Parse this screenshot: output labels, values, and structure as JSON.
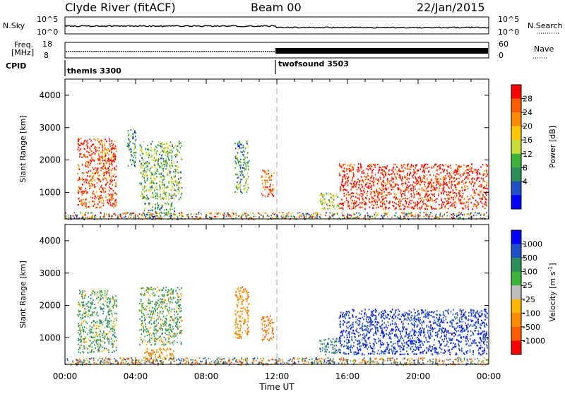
{
  "header": {
    "radar": "Clyde River (fitACF)",
    "beam": "Beam 00",
    "date": "22/Jan/2015"
  },
  "strip_labels": {
    "nsky": "N.Sky",
    "nsearch": "N.Search",
    "freq_line1": "Freq.",
    "freq_line2": "[MHz]",
    "nave": "Nave",
    "cpid": "CPID",
    "nsky_ticks": [
      "10^5",
      "10^0"
    ],
    "nsearch_ticks": [
      "10^5",
      "10^0"
    ],
    "freq_ticks": [
      "18",
      "8"
    ],
    "nave_ticks": [
      "60",
      "0"
    ],
    "cpid_modes": [
      {
        "label": "themis 3300",
        "start_hour": 0
      },
      {
        "label": "twofsound 3503",
        "start_hour": 12
      }
    ]
  },
  "axes": {
    "xlabel": "Time UT",
    "ylabel": "Slant Range [km]",
    "x_tick_labels": [
      "00:00",
      "04:00",
      "08:00",
      "12:00",
      "16:00",
      "20:00",
      "00:00"
    ],
    "y_tick_labels": [
      "1000",
      "2000",
      "3000",
      "4000"
    ]
  },
  "colorbars": {
    "power": {
      "label": "Power [dB]",
      "ticks": [
        "4",
        "8",
        "12",
        "16",
        "20",
        "24",
        "28"
      ],
      "colors": [
        "#0000ff",
        "#1e50c8",
        "#2d8c5a",
        "#3cb43c",
        "#c8dc3c",
        "#ffc800",
        "#ff8c00",
        "#ff5a00",
        "#ff0000"
      ]
    },
    "velocity": {
      "label": "Velocity [m s",
      "label_sup": "-1",
      "label_end": "]",
      "ticks": [
        "1000",
        "500",
        "100",
        "25",
        "-25",
        "-100",
        "-500",
        "-1000"
      ],
      "colors": [
        "#0000ff",
        "#1e50c8",
        "#2d8c5a",
        "#3cb43c",
        "#bebebe",
        "#ffb400",
        "#ff8c00",
        "#ff5a00",
        "#ff0000"
      ]
    }
  },
  "chart_data": [
    {
      "type": "heatmap",
      "title": "",
      "parameter": "Power [dB]",
      "xlabel": "Time UT",
      "ylabel": "Slant Range [km]",
      "xlim_hours": [
        0,
        24
      ],
      "ylim_km": [
        180,
        4500
      ],
      "color_scale": [
        0,
        30
      ],
      "regions": [
        {
          "t0": 0.7,
          "t1": 2.9,
          "r0": 550,
          "r1": 2700,
          "value": 26
        },
        {
          "t0": 3.5,
          "t1": 4.0,
          "r0": 1800,
          "r1": 3000,
          "value": 8
        },
        {
          "t0": 4.2,
          "t1": 6.6,
          "r0": 800,
          "r1": 2600,
          "value": 12
        },
        {
          "t0": 4.4,
          "t1": 6.2,
          "r0": 300,
          "r1": 700,
          "value": 10
        },
        {
          "t0": 9.6,
          "t1": 10.4,
          "r0": 1000,
          "r1": 2600,
          "value": 10
        },
        {
          "t0": 11.1,
          "t1": 11.8,
          "r0": 900,
          "r1": 1700,
          "value": 24
        },
        {
          "t0": 14.4,
          "t1": 15.5,
          "r0": 500,
          "r1": 1000,
          "value": 14
        },
        {
          "t0": 15.5,
          "t1": 23.9,
          "r0": 500,
          "r1": 1900,
          "value": 28
        }
      ]
    },
    {
      "type": "heatmap",
      "title": "",
      "parameter": "Velocity [m s-1]",
      "xlabel": "Time UT",
      "ylabel": "Slant Range [km]",
      "xlim_hours": [
        0,
        24
      ],
      "ylim_km": [
        180,
        4500
      ],
      "color_scale": [
        -1000,
        1000
      ],
      "regions": [
        {
          "t0": 0.7,
          "t1": 2.9,
          "r0": 550,
          "r1": 2500,
          "value": 150
        },
        {
          "t0": 4.2,
          "t1": 6.6,
          "r0": 800,
          "r1": 2600,
          "value": 120
        },
        {
          "t0": 4.4,
          "t1": 6.2,
          "r0": 300,
          "r1": 700,
          "value": -300
        },
        {
          "t0": 9.6,
          "t1": 10.4,
          "r0": 1000,
          "r1": 2600,
          "value": -300
        },
        {
          "t0": 11.1,
          "t1": 11.8,
          "r0": 900,
          "r1": 1700,
          "value": -500
        },
        {
          "t0": 14.4,
          "t1": 15.5,
          "r0": 500,
          "r1": 1000,
          "value": 400
        },
        {
          "t0": 15.5,
          "t1": 23.9,
          "r0": 500,
          "r1": 1900,
          "value": 900
        }
      ]
    }
  ]
}
